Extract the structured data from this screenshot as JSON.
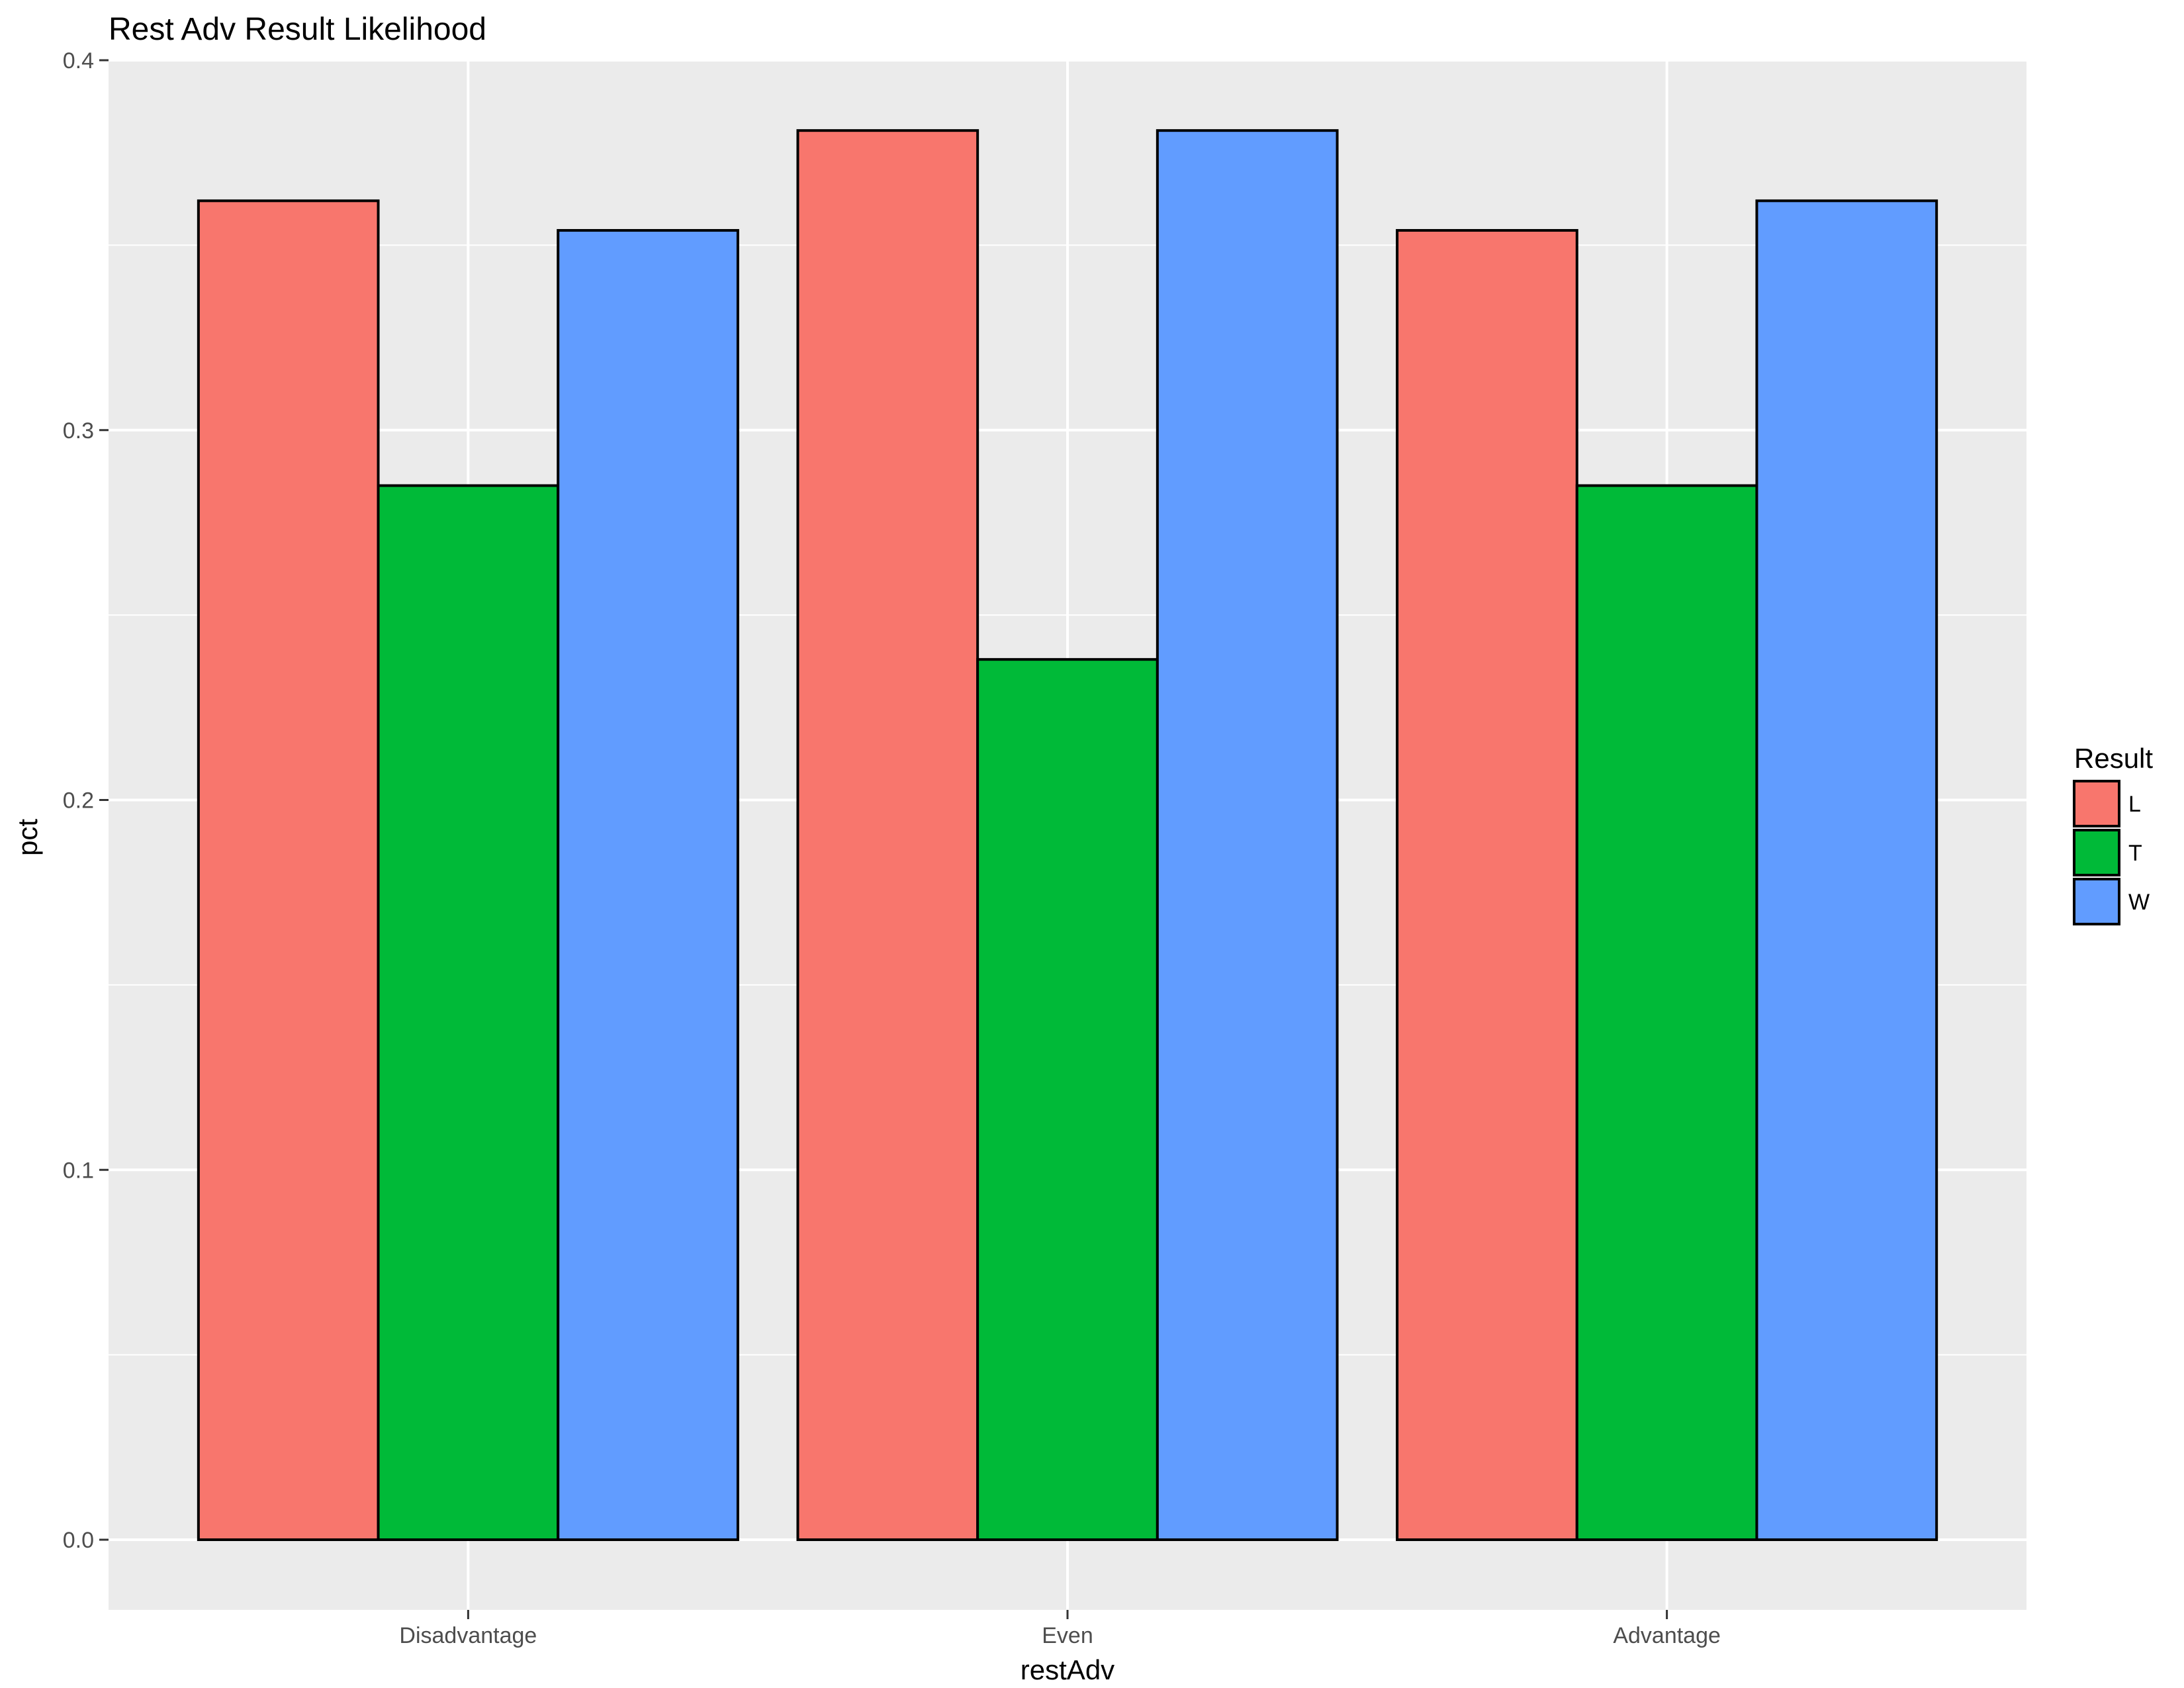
{
  "chart_data": {
    "type": "bar",
    "title": "Rest Adv Result Likelihood",
    "xlabel": "restAdv",
    "ylabel": "pct",
    "categories": [
      "Disadvantage",
      "Even",
      "Advantage"
    ],
    "series": [
      {
        "name": "L",
        "color": "#F8766D",
        "values": [
          0.362,
          0.381,
          0.354
        ]
      },
      {
        "name": "T",
        "color": "#00BA38",
        "values": [
          0.285,
          0.238,
          0.285
        ]
      },
      {
        "name": "W",
        "color": "#619CFF",
        "values": [
          0.354,
          0.381,
          0.362
        ]
      }
    ],
    "ylim": [
      0,
      0.4
    ],
    "yticks": [
      "0.0",
      "0.1",
      "0.2",
      "0.3",
      "0.4"
    ],
    "legend_title": "Result",
    "legend_position": "right",
    "grid": true,
    "panel_background": "#EBEBEB"
  }
}
